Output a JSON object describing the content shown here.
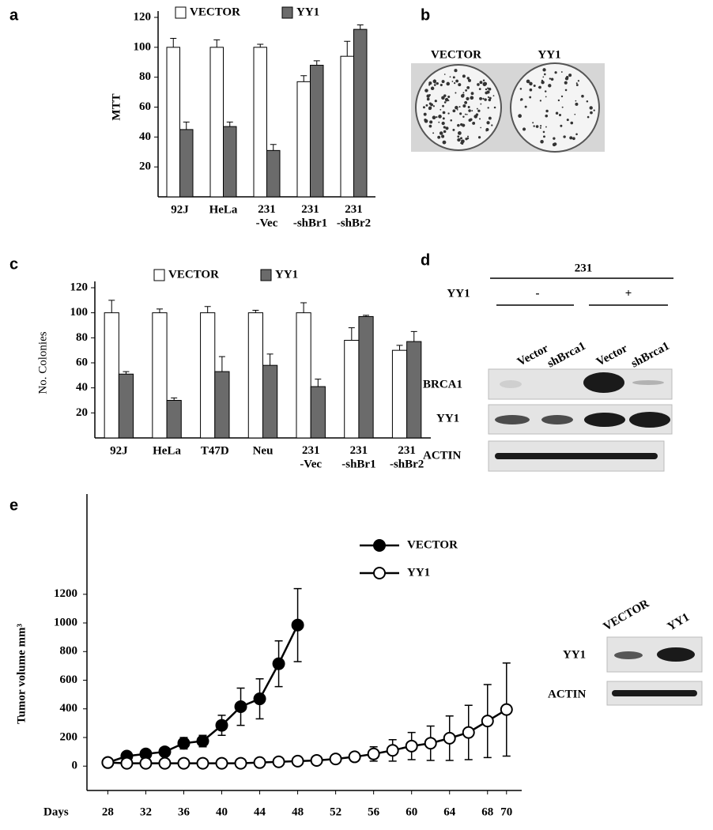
{
  "figure": {
    "panel_labels": [
      "a",
      "b",
      "c",
      "d",
      "e"
    ],
    "dish_labels": [
      "VECTOR",
      "YY1"
    ],
    "blot_d": {
      "cell_line": "231",
      "treatment_label": "YY1",
      "treatment_states": [
        "-",
        "+"
      ],
      "lanes": [
        "Vector",
        "shBrca1",
        "Vector",
        "shBrca1"
      ],
      "rows": [
        "BRCA1",
        "YY1",
        "ACTIN"
      ]
    },
    "blot_e": {
      "lanes": [
        "VECTOR",
        "YY1"
      ],
      "rows": [
        "YY1",
        "ACTIN"
      ]
    }
  },
  "chart_data": [
    {
      "type": "bar",
      "y_label": "MTT",
      "categories": [
        "92J",
        "HeLa",
        "231\n-Vec",
        "231\n-shBr1",
        "231\n-shBr2"
      ],
      "series": [
        {
          "name": "VECTOR",
          "color": "#ffffff",
          "values": [
            100,
            100,
            100,
            77,
            94
          ],
          "errors": [
            6,
            5,
            2,
            4,
            10
          ]
        },
        {
          "name": "YY1",
          "color": "#6b6b6b",
          "values": [
            45,
            47,
            31,
            88,
            112
          ],
          "errors": [
            5,
            3,
            4,
            3,
            3
          ]
        }
      ],
      "ylim": [
        0,
        120
      ],
      "yticks": [
        20,
        40,
        60,
        80,
        100,
        120
      ],
      "grid": false
    },
    {
      "type": "bar",
      "y_label": "No. Colonies",
      "categories": [
        "92J",
        "HeLa",
        "T47D",
        "Neu",
        "231\n-Vec",
        "231\n-shBr1",
        "231\n-shBr2"
      ],
      "series": [
        {
          "name": "VECTOR",
          "color": "#ffffff",
          "values": [
            100,
            100,
            100,
            100,
            100,
            78,
            70
          ],
          "errors": [
            10,
            3,
            5,
            2,
            8,
            10,
            4
          ]
        },
        {
          "name": "YY1",
          "color": "#6b6b6b",
          "values": [
            51,
            30,
            53,
            58,
            41,
            97,
            77
          ],
          "errors": [
            2,
            2,
            12,
            9,
            6,
            1,
            8
          ]
        }
      ],
      "ylim": [
        0,
        120
      ],
      "yticks": [
        20,
        40,
        60,
        80,
        100,
        120
      ],
      "grid": false
    },
    {
      "type": "line",
      "y_label": "Tumor volume mm³",
      "x_label": "Days",
      "x": [
        28,
        30,
        32,
        34,
        36,
        38,
        40,
        42,
        44,
        46,
        48,
        50,
        52,
        54,
        56,
        58,
        60,
        62,
        64,
        66,
        68,
        70
      ],
      "series": [
        {
          "name": "VECTOR",
          "color": "#000000",
          "marker_fill": "#000000",
          "values": [
            25,
            70,
            85,
            100,
            160,
            175,
            285,
            415,
            470,
            715,
            985,
            null,
            null,
            null,
            null,
            null,
            null,
            null,
            null,
            null,
            null,
            null
          ],
          "errors": [
            5,
            10,
            10,
            15,
            40,
            40,
            70,
            130,
            140,
            160,
            255,
            null,
            null,
            null,
            null,
            null,
            null,
            null,
            null,
            null,
            null,
            null
          ]
        },
        {
          "name": "YY1",
          "color": "#000000",
          "marker_fill": "#ffffff",
          "values": [
            25,
            20,
            20,
            20,
            20,
            20,
            20,
            20,
            25,
            30,
            35,
            40,
            50,
            65,
            85,
            110,
            140,
            160,
            195,
            235,
            315,
            395
          ],
          "errors": [
            5,
            5,
            5,
            5,
            5,
            5,
            5,
            5,
            5,
            5,
            5,
            5,
            10,
            30,
            50,
            75,
            95,
            120,
            155,
            190,
            255,
            325
          ]
        }
      ],
      "xlim": [
        25.8,
        71.6
      ],
      "xticks": [
        28,
        32,
        36,
        40,
        44,
        48,
        52,
        56,
        60,
        64,
        68,
        70
      ],
      "ylim": [
        -170,
        1900
      ],
      "yticks": [
        0,
        200,
        400,
        600,
        800,
        1000,
        1200
      ],
      "grid": false
    }
  ]
}
